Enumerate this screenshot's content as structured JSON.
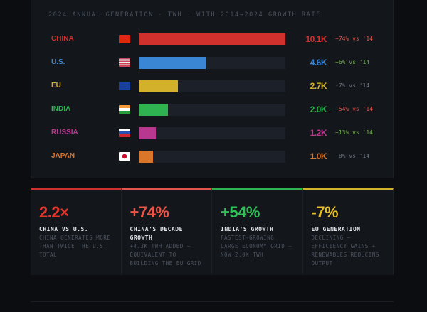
{
  "title": "2024 ANNUAL GENERATION · TWH · WITH 2014→2024 GROWTH RATE",
  "rows": [
    {
      "label": "CHINA",
      "flag": "china-flag-icon",
      "value": "10.1K",
      "twh": 10.1,
      "growth": "+74% vs '14",
      "color": "#d0312d",
      "growth_color": "#e0564a"
    },
    {
      "label": "U.S.",
      "flag": "us-flag-icon",
      "value": "4.6K",
      "twh": 4.6,
      "growth": "+6% vs '14",
      "color": "#3a86d4",
      "growth_color": "#6fae4a"
    },
    {
      "label": "EU",
      "flag": "eu-flag-icon",
      "value": "2.7K",
      "twh": 2.7,
      "growth": "-7% vs '14",
      "color": "#d4b12a",
      "growth_color": "#6b7683"
    },
    {
      "label": "INDIA",
      "flag": "india-flag-icon",
      "value": "2.0K",
      "twh": 2.0,
      "growth": "+54% vs '14",
      "color": "#2fb350",
      "growth_color": "#e0564a"
    },
    {
      "label": "RUSSIA",
      "flag": "russia-flag-icon",
      "value": "1.2K",
      "twh": 1.2,
      "growth": "+13% vs '14",
      "color": "#b8388f",
      "growth_color": "#6fae4a"
    },
    {
      "label": "JAPAN",
      "flag": "japan-flag-icon",
      "value": "1.0K",
      "twh": 1.0,
      "growth": "-8% vs '14",
      "color": "#d9762a",
      "growth_color": "#6b7683"
    }
  ],
  "cards": [
    {
      "big": "2.2×",
      "title": "CHINA VS U.S.",
      "desc": "CHINA GENERATES MORE THAN TWICE THE U.S. TOTAL",
      "color": "#e2342c",
      "border": "#d0312d"
    },
    {
      "big": "+74%",
      "title": "CHINA'S DECADE GROWTH",
      "desc": "+4.3K TWH ADDED — EQUIVALENT TO BUILDING THE EU GRID",
      "color": "#ee5346",
      "border": "#e0564a"
    },
    {
      "big": "+54%",
      "title": "INDIA'S GROWTH",
      "desc": "FASTEST-GROWING LARGE ECONOMY GRID — NOW 2.0K TWH",
      "color": "#2fc157",
      "border": "#2fb350"
    },
    {
      "big": "-7%",
      "title": "EU GENERATION",
      "desc": "DECLINING — EFFICIENCY GAINS + RENEWABLES REDUCING OUTPUT",
      "color": "#e6be2c",
      "border": "#d4b12a"
    }
  ]
}
